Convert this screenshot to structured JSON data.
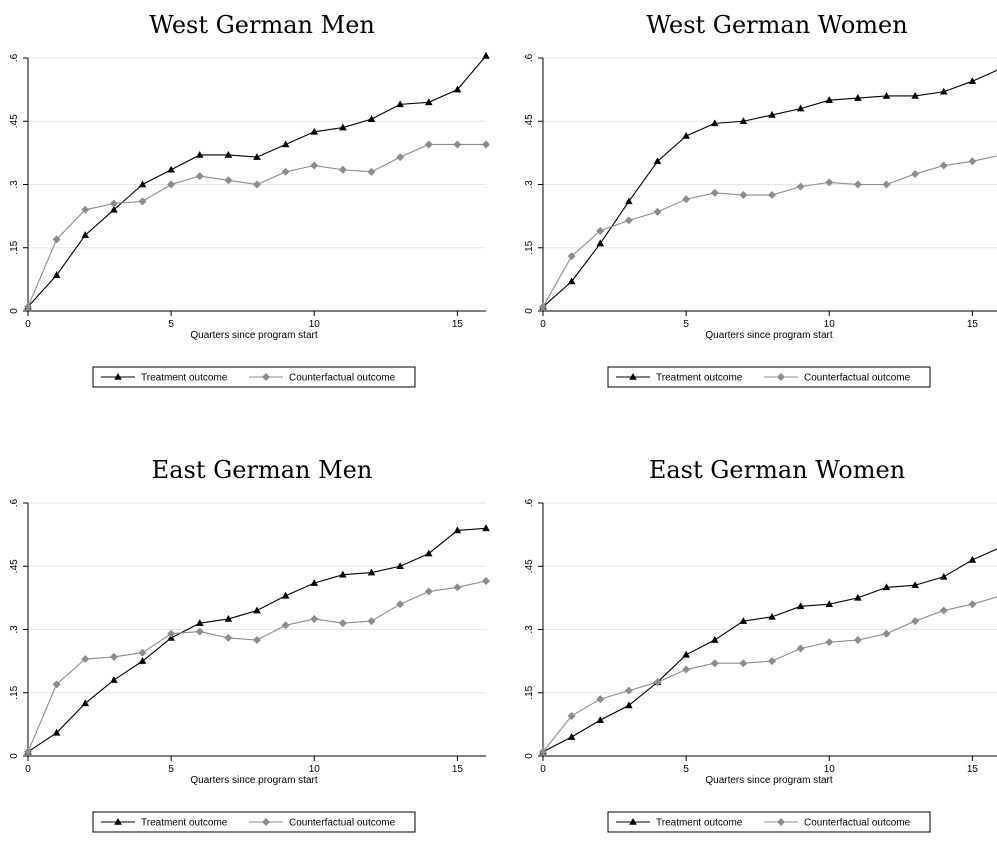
{
  "colors": {
    "treatment": "#000000",
    "counterfactual": "#8c8c8c",
    "grid": "#e6e6e6",
    "axis": "#000000"
  },
  "chart_data": [
    {
      "type": "line",
      "title": "West German Men",
      "xlabel": "Quarters since program start",
      "ylabel": "",
      "xlim": [
        0,
        16
      ],
      "ylim": [
        0,
        0.6
      ],
      "xticks": [
        0,
        5,
        10,
        15
      ],
      "xtick_labels": [
        "0",
        "5",
        "10",
        "15"
      ],
      "yticks": [
        0,
        0.15,
        0.3,
        0.45,
        0.6
      ],
      "ytick_labels": [
        "0",
        ".15",
        ".3",
        ".45",
        ".6"
      ],
      "grid": true,
      "legend_position": "bottom",
      "x": [
        0,
        1,
        2,
        3,
        4,
        5,
        6,
        7,
        8,
        9,
        10,
        11,
        12,
        13,
        14,
        15,
        16
      ],
      "series": [
        {
          "name": "Treatment outcome",
          "marker": "triangle",
          "values": [
            0.01,
            0.085,
            0.18,
            0.24,
            0.3,
            0.335,
            0.37,
            0.37,
            0.365,
            0.395,
            0.425,
            0.435,
            0.455,
            0.49,
            0.495,
            0.525,
            0.605
          ]
        },
        {
          "name": "Counterfactual outcome",
          "marker": "diamond",
          "values": [
            0.01,
            0.17,
            0.24,
            0.255,
            0.26,
            0.3,
            0.32,
            0.31,
            0.3,
            0.33,
            0.345,
            0.335,
            0.33,
            0.365,
            0.395,
            0.395,
            0.395
          ]
        }
      ]
    },
    {
      "type": "line",
      "title": "West German Women",
      "xlabel": "Quarters since program start",
      "ylabel": "",
      "xlim": [
        0,
        16
      ],
      "ylim": [
        0,
        0.6
      ],
      "xticks": [
        0,
        5,
        10,
        15
      ],
      "xtick_labels": [
        "0",
        "5",
        "10",
        "15"
      ],
      "yticks": [
        0,
        0.15,
        0.3,
        0.45,
        0.6
      ],
      "ytick_labels": [
        "0",
        ".15",
        ".3",
        ".45",
        ".6"
      ],
      "grid": true,
      "legend_position": "bottom",
      "x": [
        0,
        1,
        2,
        3,
        4,
        5,
        6,
        7,
        8,
        9,
        10,
        11,
        12,
        13,
        14,
        15,
        16
      ],
      "series": [
        {
          "name": "Treatment outcome",
          "marker": "triangle",
          "values": [
            0.01,
            0.07,
            0.16,
            0.26,
            0.355,
            0.415,
            0.445,
            0.45,
            0.465,
            0.48,
            0.5,
            0.505,
            0.51,
            0.51,
            0.52,
            0.545,
            0.575
          ]
        },
        {
          "name": "Counterfactual outcome",
          "marker": "diamond",
          "values": [
            0.01,
            0.13,
            0.19,
            0.215,
            0.235,
            0.265,
            0.28,
            0.275,
            0.275,
            0.295,
            0.305,
            0.3,
            0.3,
            0.325,
            0.345,
            0.355,
            0.37
          ]
        }
      ]
    },
    {
      "type": "line",
      "title": "East German Men",
      "xlabel": "Quarters since program start",
      "ylabel": "",
      "xlim": [
        0,
        16
      ],
      "ylim": [
        0,
        0.6
      ],
      "xticks": [
        0,
        5,
        10,
        15
      ],
      "xtick_labels": [
        "0",
        "5",
        "10",
        "15"
      ],
      "yticks": [
        0,
        0.15,
        0.3,
        0.45,
        0.6
      ],
      "ytick_labels": [
        "0",
        ".15",
        ".3",
        ".45",
        ".6"
      ],
      "grid": true,
      "legend_position": "bottom",
      "x": [
        0,
        1,
        2,
        3,
        4,
        5,
        6,
        7,
        8,
        9,
        10,
        11,
        12,
        13,
        14,
        15,
        16
      ],
      "series": [
        {
          "name": "Treatment outcome",
          "marker": "triangle",
          "values": [
            0.01,
            0.055,
            0.125,
            0.18,
            0.225,
            0.28,
            0.315,
            0.325,
            0.345,
            0.38,
            0.41,
            0.43,
            0.435,
            0.45,
            0.48,
            0.535,
            0.54
          ]
        },
        {
          "name": "Counterfactual outcome",
          "marker": "diamond",
          "values": [
            0.01,
            0.17,
            0.23,
            0.235,
            0.245,
            0.29,
            0.295,
            0.28,
            0.275,
            0.31,
            0.325,
            0.315,
            0.32,
            0.36,
            0.39,
            0.4,
            0.415
          ]
        }
      ]
    },
    {
      "type": "line",
      "title": "East German Women",
      "xlabel": "Quarters since program start",
      "ylabel": "",
      "xlim": [
        0,
        16
      ],
      "ylim": [
        0,
        0.6
      ],
      "xticks": [
        0,
        5,
        10,
        15
      ],
      "xtick_labels": [
        "0",
        "5",
        "10",
        "15"
      ],
      "yticks": [
        0,
        0.15,
        0.3,
        0.45,
        0.6
      ],
      "ytick_labels": [
        "0",
        ".15",
        ".3",
        ".45",
        ".6"
      ],
      "grid": true,
      "legend_position": "bottom",
      "x": [
        0,
        1,
        2,
        3,
        4,
        5,
        6,
        7,
        8,
        9,
        10,
        11,
        12,
        13,
        14,
        15,
        16
      ],
      "series": [
        {
          "name": "Treatment outcome",
          "marker": "triangle",
          "values": [
            0.01,
            0.045,
            0.085,
            0.12,
            0.175,
            0.24,
            0.275,
            0.32,
            0.33,
            0.355,
            0.36,
            0.375,
            0.4,
            0.405,
            0.425,
            0.465,
            0.495
          ]
        },
        {
          "name": "Counterfactual outcome",
          "marker": "diamond",
          "values": [
            0.01,
            0.095,
            0.135,
            0.155,
            0.175,
            0.205,
            0.22,
            0.22,
            0.225,
            0.255,
            0.27,
            0.275,
            0.29,
            0.32,
            0.345,
            0.36,
            0.38
          ]
        }
      ]
    }
  ]
}
